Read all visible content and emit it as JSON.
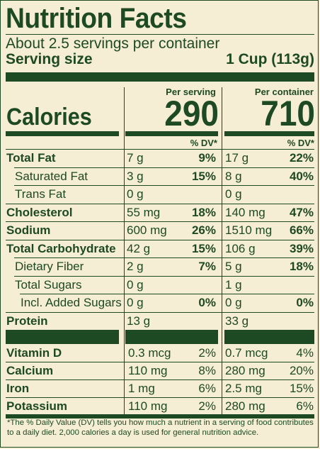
{
  "title": "Nutrition Facts",
  "servings_per_container": "About 2.5 servings per container",
  "serving_size_label": "Serving size",
  "serving_size_value": "1 Cup (113g)",
  "calories_label": "Calories",
  "per_serving_label": "Per serving",
  "per_container_label": "Per container",
  "calories_per_serving": "290",
  "calories_per_container": "710",
  "dv_header": "% DV*",
  "nutrients": [
    {
      "label": "Total Fat",
      "bold": true,
      "indent": 0,
      "serv_amt": "7 g",
      "serv_dv": "9%",
      "cont_amt": "17 g",
      "cont_dv": "22%"
    },
    {
      "label": "Saturated Fat",
      "bold": false,
      "indent": 1,
      "serv_amt": "3 g",
      "serv_dv": "15%",
      "cont_amt": "8 g",
      "cont_dv": "40%"
    },
    {
      "label": "Trans Fat",
      "bold": false,
      "indent": 1,
      "serv_amt": "0 g",
      "serv_dv": "",
      "cont_amt": "0 g",
      "cont_dv": ""
    },
    {
      "label": "Cholesterol",
      "bold": true,
      "indent": 0,
      "serv_amt": "55 mg",
      "serv_dv": "18%",
      "cont_amt": "140 mg",
      "cont_dv": "47%"
    },
    {
      "label": "Sodium",
      "bold": true,
      "indent": 0,
      "serv_amt": "600 mg",
      "serv_dv": "26%",
      "cont_amt": "1510 mg",
      "cont_dv": "66%"
    },
    {
      "label": "Total Carbohydrate",
      "bold": true,
      "indent": 0,
      "serv_amt": "42 g",
      "serv_dv": "15%",
      "cont_amt": "106 g",
      "cont_dv": "39%"
    },
    {
      "label": "Dietary Fiber",
      "bold": false,
      "indent": 1,
      "serv_amt": "2 g",
      "serv_dv": "7%",
      "cont_amt": "5 g",
      "cont_dv": "18%"
    },
    {
      "label": "Total Sugars",
      "bold": false,
      "indent": 1,
      "serv_amt": "0 g",
      "serv_dv": "",
      "cont_amt": "1 g",
      "cont_dv": ""
    },
    {
      "label": "Incl. Added Sugars",
      "bold": false,
      "indent": 2,
      "serv_amt": "0 g",
      "serv_dv": "0%",
      "cont_amt": "0 g",
      "cont_dv": "0%"
    },
    {
      "label": "Protein",
      "bold": true,
      "indent": 0,
      "serv_amt": "13 g",
      "serv_dv": "",
      "cont_amt": "33 g",
      "cont_dv": ""
    }
  ],
  "vitamins": [
    {
      "label": "Vitamin D",
      "serv_amt": "0.3 mcg",
      "serv_dv": "2%",
      "cont_amt": "0.7 mcg",
      "cont_dv": "4%"
    },
    {
      "label": "Calcium",
      "serv_amt": "110 mg",
      "serv_dv": "8%",
      "cont_amt": "280 mg",
      "cont_dv": "20%"
    },
    {
      "label": "Iron",
      "serv_amt": "1 mg",
      "serv_dv": "6%",
      "cont_amt": "2.5 mg",
      "cont_dv": "15%"
    },
    {
      "label": "Potassium",
      "serv_amt": "110 mg",
      "serv_dv": "2%",
      "cont_amt": "280 mg",
      "cont_dv": "6%"
    }
  ],
  "footnote": "*The % Daily Value (DV) tells you how much a nutrient in a serving of food contributes to a daily diet. 2,000 calories a day is used for general nutrition advice.",
  "colors": {
    "ink": "#1d4a22",
    "background": "#f6edd5"
  }
}
